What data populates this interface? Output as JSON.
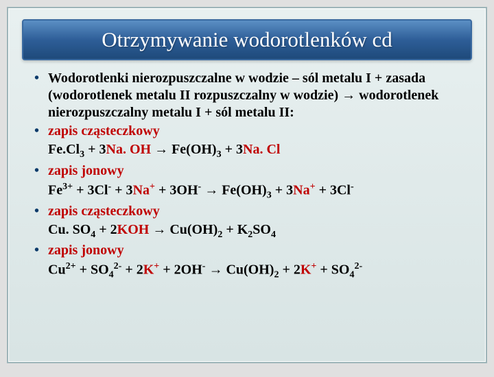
{
  "title": "Otrzymywanie wodorotlenków cd",
  "colors": {
    "background_gradient_top": "#e8f0f0",
    "background_gradient_bottom": "#d8e4e4",
    "slide_border": "#9db4b8",
    "title_gradient_top": "#5b8fc4",
    "title_gradient_mid": "#2e5e98",
    "title_gradient_bottom": "#1e4a7a",
    "title_text": "#ffffff",
    "body_text": "#000000",
    "accent": "#c00000",
    "bullet": "#0a3a6a"
  },
  "typography": {
    "title_fontsize": 31,
    "body_fontsize": 20,
    "font_family": "Times New Roman",
    "body_weight": "bold"
  },
  "text": {
    "bullet1_part1": "Wodorotlenki nierozpuszczalne w wodzie – sól  metalu I + zasada (wodorotlenek metalu II rozpuszczalny w wodzie) ",
    "arrow": "→",
    "bullet1_part2": " wodorotlenek nierozpuszczalny  metalu I + sól metalu II:",
    "bullet2": "zapis cząsteczkowy",
    "line2a": "Fe.Cl",
    "line2_3": "3",
    "line2b": " + 3",
    "line2c": "Na. OH ",
    "line2d": " Fe(OH)",
    "line2e": " + 3",
    "line2f": "Na. Cl",
    "bullet3": "zapis jonowy",
    "line3a": "Fe",
    "line3_3plus": "3+",
    "line3b": " + 3Cl",
    "line3_minus": "-",
    "line3c": " +  3",
    "line3d": "Na",
    "line3_plus": "+",
    "line3e": " + 3OH",
    "line3f": " Fe(OH)",
    "line3g": " + 3",
    "line3h": " + 3Cl",
    "bullet4": "zapis cząsteczkowy",
    "line4a": "Cu. SO",
    "line4_4": "4",
    "line4b": " + 2",
    "line4c": "KOH ",
    "line4d": " Cu(OH)",
    "line4_2": "2",
    "line4e": " + K",
    "line4f": "SO",
    "bullet5": "zapis jonowy",
    "line5a": "Cu",
    "line5_2plus": "2+",
    "line5b": " + SO",
    "line5_2minus": "2-",
    "line5c": " + 2",
    "line5d": "K",
    "line5e": " + 2OH",
    "line5f": " Cu(OH)",
    "line5g": " + 2",
    "line5h": " + SO"
  }
}
